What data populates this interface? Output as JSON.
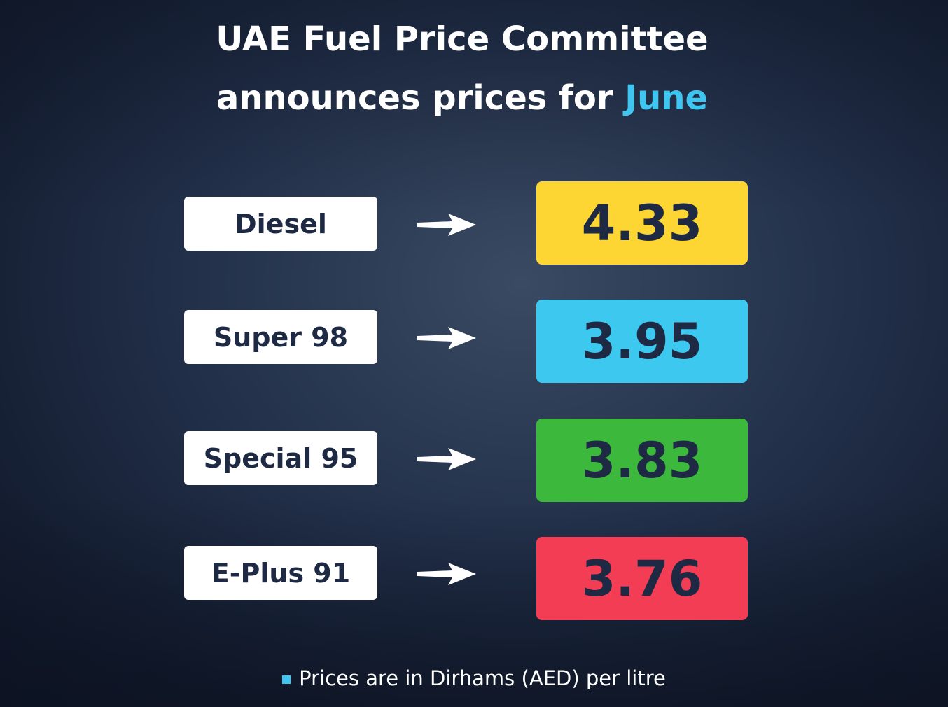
{
  "header": {
    "title_line1": "UAE Fuel Price Committee",
    "title_line2": "announces prices for",
    "month": "June"
  },
  "rows": [
    {
      "fuel": "Diesel",
      "price": 4.33,
      "color": "#fdd634"
    },
    {
      "fuel": "Super 98",
      "price": 3.95,
      "color": "#3dc8ef"
    },
    {
      "fuel": "Special 95",
      "price": 3.83,
      "color": "#3cb93c"
    },
    {
      "fuel": "E-Plus 91",
      "price": 3.76,
      "color": "#f23d55"
    }
  ],
  "footnote": "Prices are in Dirhams (AED) per litre"
}
